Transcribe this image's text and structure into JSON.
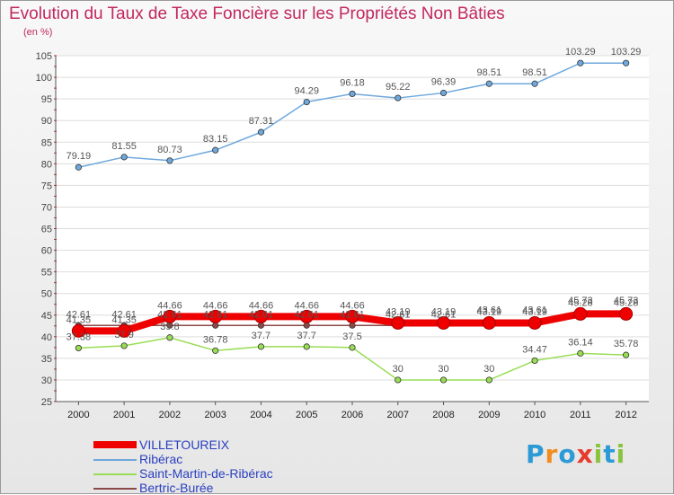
{
  "title": "Evolution du Taux de Taxe Foncière sur les Propriétés Non Bâties",
  "unit": "(en %)",
  "logo": "Proxiti",
  "chart_data": {
    "type": "line",
    "x": [
      "2000",
      "2001",
      "2002",
      "2003",
      "2004",
      "2005",
      "2006",
      "2007",
      "2008",
      "2009",
      "2010",
      "2011",
      "2012"
    ],
    "ylim": [
      25,
      105
    ],
    "yticks": [
      25,
      30,
      35,
      40,
      45,
      50,
      55,
      60,
      65,
      70,
      75,
      80,
      85,
      90,
      95,
      100,
      105
    ],
    "grid": "horizontal",
    "legend": "bottom-left",
    "series": [
      {
        "name": "VILLETOUREIX",
        "color": "#ee0000",
        "width": 8,
        "values": [
          41.35,
          41.35,
          44.66,
          44.66,
          44.66,
          44.66,
          44.66,
          43.19,
          43.19,
          43.19,
          43.19,
          45.28,
          45.28
        ],
        "labels": [
          "41.35",
          "41.35",
          "44.66",
          "44.66",
          "44.66",
          "44.66",
          "44.66",
          "43.19",
          "43.19",
          "43.19",
          "43.19",
          "45.28",
          "45.28"
        ]
      },
      {
        "name": "Ribérac",
        "color": "#6fa8dc",
        "width": 1.5,
        "values": [
          79.19,
          81.55,
          80.73,
          83.15,
          87.31,
          94.29,
          96.18,
          95.22,
          96.39,
          98.51,
          98.51,
          103.29,
          103.29
        ],
        "labels": [
          "79.19",
          "81.55",
          "80.73",
          "83.15",
          "87.31",
          "94.29",
          "96.18",
          "95.22",
          "96.39",
          "98.51",
          "98.51",
          "103.29",
          "103.29"
        ]
      },
      {
        "name": "Saint-Martin-de-Ribérac",
        "color": "#99dd55",
        "width": 1.5,
        "values": [
          37.38,
          37.9,
          39.8,
          36.78,
          37.7,
          37.7,
          37.5,
          30,
          30,
          30,
          34.47,
          36.14,
          35.78
        ],
        "labels": [
          "37.38",
          "37.9",
          "39.8",
          "36.78",
          "37.7",
          "37.7",
          "37.5",
          "30",
          "30",
          "30",
          "34.47",
          "36.14",
          "35.78"
        ]
      },
      {
        "name": "Bertric-Burée",
        "color": "#8b4a4a",
        "width": 1.5,
        "values": [
          42.61,
          42.61,
          42.61,
          42.61,
          42.61,
          42.61,
          42.61,
          42.61,
          42.61,
          43.61,
          43.61,
          45.73,
          45.73
        ],
        "labels": [
          "42.61",
          "42.61",
          "42.61",
          "42.61",
          "42.61",
          "42.61",
          "42.61",
          "42.61",
          "42.61",
          "43.61",
          "43.61",
          "45.73",
          "45.73"
        ]
      }
    ]
  }
}
